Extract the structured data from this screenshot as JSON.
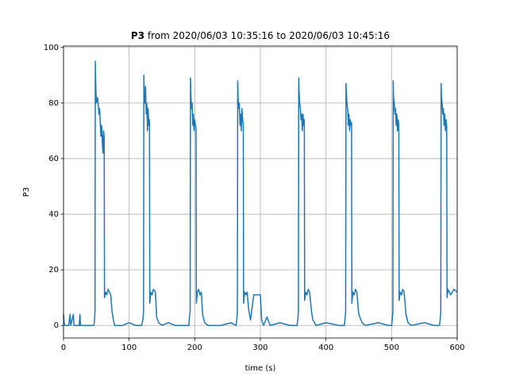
{
  "chart_data": {
    "type": "line",
    "title_parts": [
      "P3",
      "from 2020/06/03 10:35:16 to 2020/06/03 10:45:16"
    ],
    "x_label": "time (s)",
    "y_label": "P3",
    "xlim": [
      0,
      600
    ],
    "xticks": [
      0,
      100,
      200,
      300,
      400,
      500,
      600
    ],
    "ylim": [
      -4.5,
      100.5
    ],
    "yticks": [
      0,
      20,
      40,
      60,
      80,
      100
    ],
    "grid": true,
    "series": [
      {
        "color": "#1f77b4",
        "x": [
          0,
          1,
          2,
          8,
          10,
          11,
          15,
          16,
          24,
          25,
          26,
          46,
          47,
          48,
          48.5,
          49,
          50,
          52,
          54,
          55,
          57,
          58,
          60,
          61,
          62,
          62.5,
          64,
          66,
          68,
          70,
          72,
          74,
          76,
          78,
          90,
          100,
          110,
          119,
          121,
          122,
          122.5,
          123,
          124,
          125,
          126,
          127,
          128,
          129,
          130,
          131,
          131.5,
          133,
          135,
          137,
          140,
          142,
          145,
          150,
          160,
          170,
          191,
          192,
          193,
          193.5,
          194,
          195,
          196,
          197,
          198,
          199,
          200,
          201,
          202,
          202.5,
          204,
          206,
          208,
          210,
          212,
          215,
          220,
          240,
          255,
          263,
          264,
          265,
          265.5,
          266,
          267,
          268,
          269,
          270,
          271,
          272,
          273,
          274,
          274.5,
          276,
          278,
          280,
          282,
          285,
          290,
          295,
          300,
          302,
          305,
          310,
          315,
          330,
          345,
          356,
          357,
          358,
          358.5,
          359,
          360,
          361,
          362,
          363,
          364,
          365,
          366,
          367,
          367.5,
          369,
          371,
          373,
          375,
          378,
          380,
          385,
          400,
          420,
          428,
          429,
          430,
          430.5,
          431,
          432,
          433,
          434,
          435,
          436,
          437,
          438,
          439,
          439.5,
          441,
          443,
          445,
          447,
          450,
          455,
          460,
          480,
          495,
          500,
          501,
          502,
          502.5,
          503,
          504,
          505,
          506,
          507,
          508,
          509,
          510,
          511,
          511.5,
          513,
          515,
          517,
          519,
          522,
          525,
          530,
          550,
          565,
          573,
          574,
          575,
          575.5,
          576,
          577,
          578,
          579,
          580,
          581,
          582,
          583,
          584,
          584.5,
          586,
          588,
          590,
          595,
          600
        ],
        "values": [
          4,
          1,
          0,
          0,
          4,
          0,
          4,
          0,
          0,
          4,
          0,
          0,
          1,
          5,
          95,
          88,
          80,
          82,
          76,
          78,
          68,
          72,
          62,
          70,
          68,
          10,
          12,
          11,
          13,
          12,
          11,
          5,
          2,
          0,
          0,
          1,
          0,
          0,
          2,
          5,
          90,
          84,
          80,
          86,
          76,
          80,
          70,
          78,
          72,
          74,
          8,
          12,
          11,
          13,
          12,
          3,
          1,
          0,
          1,
          0,
          0,
          3,
          5,
          89,
          84,
          78,
          80,
          72,
          76,
          70,
          74,
          72,
          71,
          8,
          12,
          13,
          11,
          12,
          4,
          1,
          0,
          0,
          1,
          0,
          2,
          5,
          88,
          82,
          78,
          80,
          72,
          76,
          70,
          78,
          74,
          72,
          8,
          12,
          11,
          12,
          6,
          2,
          11,
          11,
          11,
          2,
          0,
          3,
          0,
          1,
          0,
          0,
          2,
          5,
          89,
          84,
          80,
          78,
          74,
          76,
          70,
          76,
          72,
          74,
          9,
          12,
          11,
          13,
          12,
          5,
          2,
          0,
          1,
          0,
          0,
          2,
          5,
          87,
          84,
          80,
          78,
          72,
          76,
          70,
          74,
          72,
          73,
          8,
          12,
          11,
          13,
          12,
          4,
          1,
          0,
          1,
          0,
          0,
          2,
          5,
          88,
          82,
          80,
          76,
          78,
          72,
          76,
          70,
          74,
          72,
          9,
          12,
          11,
          13,
          12,
          4,
          1,
          0,
          1,
          0,
          0,
          2,
          5,
          87,
          82,
          80,
          76,
          78,
          72,
          76,
          70,
          74,
          72,
          10,
          13,
          12,
          11,
          13,
          12
        ]
      }
    ]
  }
}
